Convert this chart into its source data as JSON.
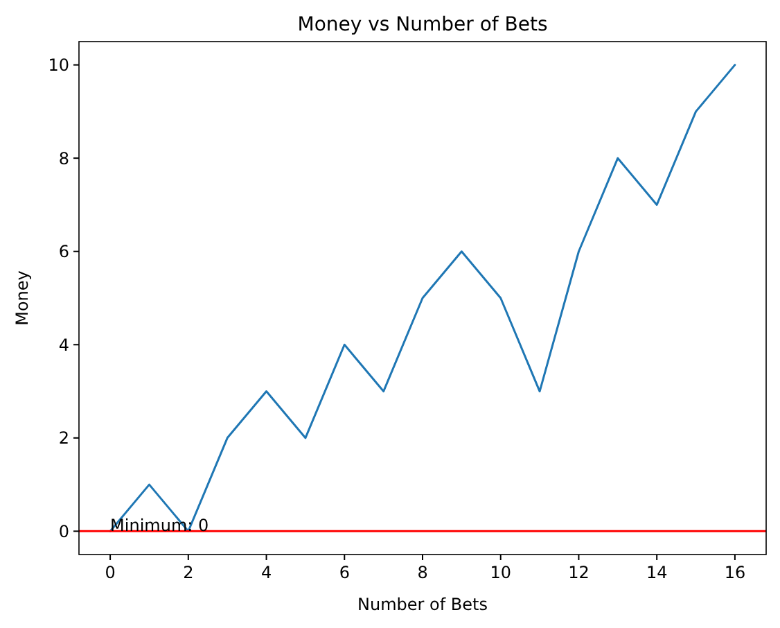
{
  "chart_data": {
    "type": "line",
    "title": "Money vs Number of Bets",
    "xlabel": "Number of Bets",
    "ylabel": "Money",
    "x": [
      0,
      1,
      2,
      3,
      4,
      5,
      6,
      7,
      8,
      9,
      10,
      11,
      12,
      13,
      14,
      15,
      16
    ],
    "series": [
      {
        "color": "#1f77b4",
        "values": [
          0,
          1,
          0,
          2,
          3,
          2,
          4,
          3,
          5,
          6,
          5,
          3,
          6,
          8,
          7,
          9,
          10
        ]
      }
    ],
    "xlim": [
      -0.8,
      16.8
    ],
    "xticks": [
      0,
      2,
      4,
      6,
      8,
      10,
      12,
      14,
      16
    ],
    "ylim": [
      -0.5,
      10.5
    ],
    "yticks": [
      0,
      2,
      4,
      6,
      8,
      10
    ],
    "grid": false,
    "marker": "none",
    "line_style": "solid",
    "ref_lines": [
      {
        "axis": "y",
        "value": 0,
        "color": "#ff0000"
      }
    ],
    "annotations": [
      {
        "text": "Minimum: 0",
        "x": 0,
        "y": 0
      }
    ]
  }
}
